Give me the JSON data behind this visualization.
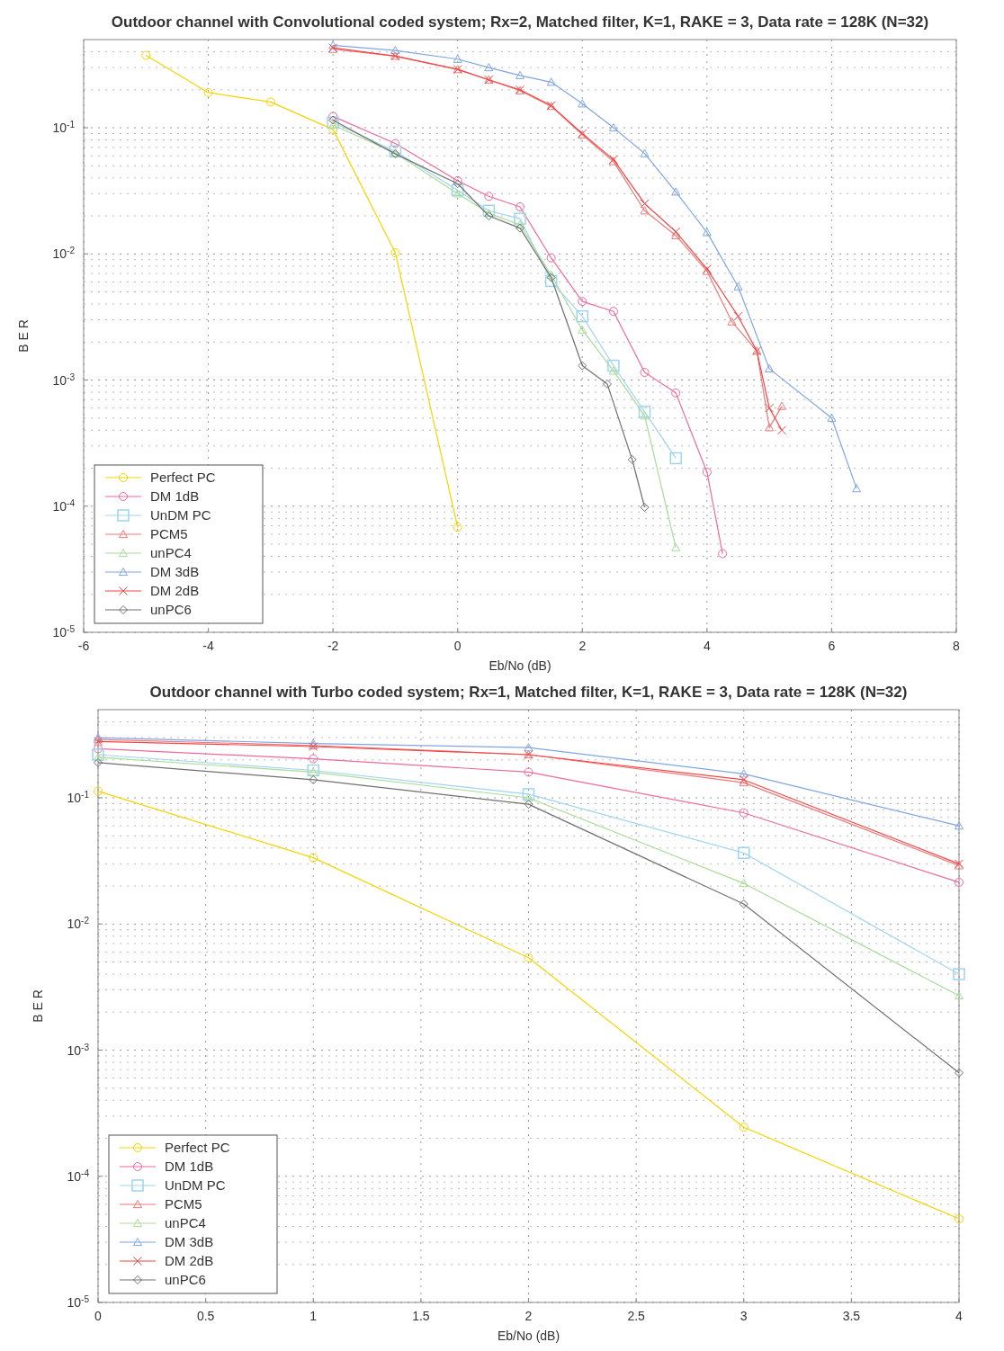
{
  "chart_data": [
    {
      "type": "line",
      "title": "Outdoor channel with Convolutional coded system; Rx=2, Matched filter, K=1, RAKE = 3, Data rate = 128K (N=32)",
      "xlabel": "Eb/No (dB)",
      "ylabel": "B E R",
      "log": "y",
      "grid": true,
      "legend": "bottom left",
      "xlim": [
        -6,
        8
      ],
      "xticks": [
        -6,
        -4,
        -2,
        0,
        2,
        4,
        6,
        8
      ],
      "ylim": [
        1e-05,
        0.5
      ],
      "yticks": [
        {
          "value": 1e-05,
          "label": "10$^{-5}$"
        },
        {
          "value": 0.0001,
          "label": "10$^{-4}$"
        },
        {
          "value": 0.001,
          "label": "10$^{-3}$"
        },
        {
          "value": 0.01,
          "label": "10$^{-2}$"
        },
        {
          "value": 0.1,
          "label": "10$^{-1}$"
        }
      ],
      "series": [
        {
          "name": "Perfect PC",
          "color": "#f5d400",
          "marker": "circle",
          "x": [
            -5,
            -4,
            -3,
            -2,
            -1,
            0
          ],
          "values": [
            0.375,
            0.19,
            0.16,
            0.097,
            0.0102,
            6.8e-05
          ]
        },
        {
          "name": "DM 1dB",
          "color": "#ee6a9a",
          "marker": "circle",
          "x": [
            -2,
            -1,
            0,
            0.5,
            1,
            1.5,
            2,
            2.5,
            3,
            3.5,
            4,
            4.25
          ],
          "values": [
            0.123,
            0.075,
            0.038,
            0.0286,
            0.0236,
            0.0093,
            0.0042,
            0.0035,
            0.00115,
            0.00079,
            0.000186,
            4.2e-05
          ]
        },
        {
          "name": "UnDM PC",
          "color": "#9fd4ee",
          "marker": "square",
          "x": [
            -2,
            -1,
            0,
            0.5,
            1,
            1.5,
            2,
            2.5,
            3,
            3.5
          ],
          "values": [
            0.11,
            0.065,
            0.032,
            0.022,
            0.019,
            0.0061,
            0.0032,
            0.0013,
            0.00056,
            0.00024
          ]
        },
        {
          "name": "PCM5",
          "color": "#f07878",
          "marker": "triangle",
          "x": [
            -2,
            -1,
            0,
            0.5,
            1,
            1.5,
            2,
            2.5,
            3,
            3.5,
            4,
            4.4,
            4.8,
            5,
            5.2
          ],
          "values": [
            0.42,
            0.37,
            0.29,
            0.24,
            0.197,
            0.148,
            0.088,
            0.054,
            0.022,
            0.014,
            0.0073,
            0.0029,
            0.0017,
            0.00042,
            0.00062
          ]
        },
        {
          "name": "unPC4",
          "color": "#a8dc98",
          "marker": "triangle",
          "x": [
            -2,
            -1,
            0,
            0.5,
            1,
            1.5,
            2,
            2.5,
            3,
            3.5
          ],
          "values": [
            0.105,
            0.063,
            0.03,
            0.021,
            0.017,
            0.0068,
            0.0025,
            0.00118,
            0.00052,
            4.7e-05
          ]
        },
        {
          "name": "DM 3dB",
          "color": "#7fa6e0",
          "marker": "triangle",
          "x": [
            -2,
            -1,
            0,
            0.5,
            1,
            1.5,
            2,
            2.5,
            3,
            3.5,
            4,
            4.5,
            5,
            6,
            6.4
          ],
          "values": [
            0.45,
            0.41,
            0.35,
            0.3,
            0.26,
            0.23,
            0.155,
            0.1,
            0.0625,
            0.031,
            0.0148,
            0.0055,
            0.00123,
            0.0005,
            0.000138
          ]
        },
        {
          "name": "DM 2dB",
          "color": "#f04848",
          "marker": "cross",
          "x": [
            -2,
            -1,
            0,
            0.5,
            1,
            1.5,
            2,
            2.5,
            3,
            3.5,
            4,
            4.5,
            4.8,
            5,
            5.2
          ],
          "values": [
            0.43,
            0.37,
            0.29,
            0.24,
            0.2,
            0.15,
            0.09,
            0.056,
            0.025,
            0.015,
            0.0076,
            0.0032,
            0.0017,
            0.0006,
            0.0004
          ]
        },
        {
          "name": "unPC6",
          "color": "#707070",
          "marker": "diamond",
          "x": [
            -2,
            -1,
            0,
            0.5,
            1,
            1.5,
            2,
            2.4,
            2.8,
            3
          ],
          "values": [
            0.115,
            0.062,
            0.036,
            0.02,
            0.016,
            0.0065,
            0.0013,
            0.00093,
            0.000234,
            9.8e-05
          ]
        }
      ]
    },
    {
      "type": "line",
      "title": "Outdoor channel with Turbo coded system; Rx=1, Matched filter, K=1, RAKE = 3, Data rate = 128K (N=32)",
      "xlabel": "Eb/No (dB)",
      "ylabel": "B E R",
      "log": "y",
      "grid": true,
      "legend": "bottom left",
      "xlim": [
        0,
        4
      ],
      "xticks": [
        0,
        0.5,
        1,
        1.5,
        2,
        2.5,
        3,
        3.5,
        4
      ],
      "ylim": [
        1e-05,
        0.5
      ],
      "yticks": [
        {
          "value": 1e-05,
          "label": "10$^{-5}$"
        },
        {
          "value": 0.0001,
          "label": "10$^{-4}$"
        },
        {
          "value": 0.001,
          "label": "10$^{-3}$"
        },
        {
          "value": 0.01,
          "label": "10$^{-2}$"
        },
        {
          "value": 0.1,
          "label": "10$^{-1}$"
        }
      ],
      "series": [
        {
          "name": "Perfect PC",
          "color": "#f5d400",
          "marker": "circle",
          "x": [
            0,
            1,
            2,
            3,
            4
          ],
          "values": [
            0.113,
            0.0335,
            0.0054,
            0.000245,
            4.6e-05
          ]
        },
        {
          "name": "DM 1dB",
          "color": "#ee6a9a",
          "marker": "circle",
          "x": [
            0,
            1,
            2,
            3,
            4
          ],
          "values": [
            0.245,
            0.204,
            0.16,
            0.076,
            0.0214
          ]
        },
        {
          "name": "UnDM PC",
          "color": "#9fd4ee",
          "marker": "square",
          "x": [
            0,
            1,
            2,
            3,
            4
          ],
          "values": [
            0.22,
            0.165,
            0.107,
            0.0366,
            0.004
          ]
        },
        {
          "name": "PCM5",
          "color": "#f07878",
          "marker": "triangle",
          "x": [
            0,
            1,
            2,
            3,
            4
          ],
          "values": [
            0.29,
            0.26,
            0.22,
            0.132,
            0.029
          ]
        },
        {
          "name": "unPC4",
          "color": "#a8dc98",
          "marker": "triangle",
          "x": [
            0,
            1,
            2,
            3,
            4
          ],
          "values": [
            0.21,
            0.16,
            0.1,
            0.021,
            0.0027
          ]
        },
        {
          "name": "DM 3dB",
          "color": "#7fa6e0",
          "marker": "triangle",
          "x": [
            0,
            1,
            2,
            3,
            4
          ],
          "values": [
            0.3,
            0.27,
            0.25,
            0.155,
            0.06
          ]
        },
        {
          "name": "DM 2dB",
          "color": "#f04848",
          "marker": "cross",
          "x": [
            0,
            1,
            2,
            3,
            4
          ],
          "values": [
            0.28,
            0.255,
            0.22,
            0.139,
            0.03
          ]
        },
        {
          "name": "unPC6",
          "color": "#707070",
          "marker": "diamond",
          "x": [
            0,
            1,
            2,
            3,
            4
          ],
          "values": [
            0.19,
            0.139,
            0.089,
            0.0144,
            0.00066
          ]
        }
      ]
    }
  ]
}
